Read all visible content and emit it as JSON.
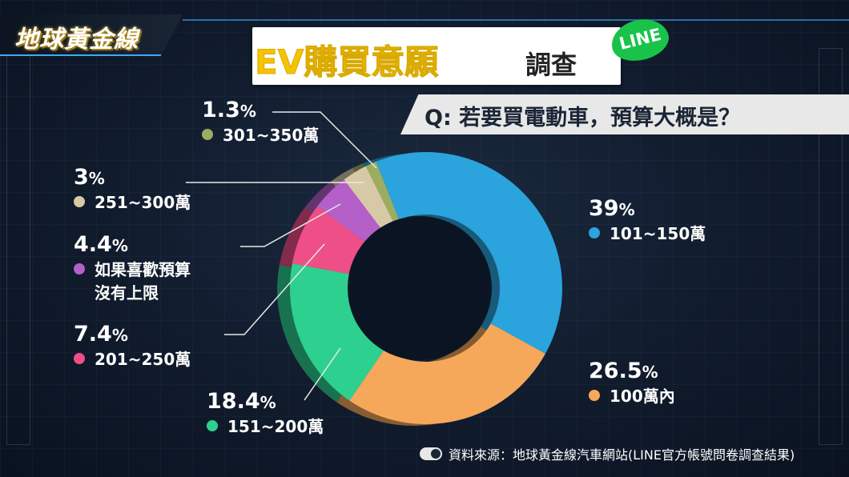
{
  "brand": "地球黃金線",
  "title": {
    "main": "EV購買意願",
    "sub": "調查",
    "badge": "LINE"
  },
  "question": "Q: 若要買電動車，預算大概是？",
  "source": "資料來源：地球黃金線汽車網站(LINE官方帳號問卷調查結果)",
  "chart_data": {
    "type": "pie",
    "subtype": "donut",
    "title": "EV購買意願調查",
    "subtitle": "Q: 若要買電動車，預算大概是？",
    "slices": [
      {
        "label": "101~150萬",
        "value": 39,
        "display": "39%",
        "color": "#2ba3dd"
      },
      {
        "label": "100萬內",
        "value": 26.5,
        "display": "26.5%",
        "color": "#f6a85a"
      },
      {
        "label": "151~200萬",
        "value": 18.4,
        "display": "18.4%",
        "color": "#2ed08f"
      },
      {
        "label": "201~250萬",
        "value": 7.4,
        "display": "7.4%",
        "color": "#ee4f86"
      },
      {
        "label": "如果喜歡預算沒有上限",
        "value": 4.4,
        "display": "4.4%",
        "color": "#b55fc9"
      },
      {
        "label": "251~300萬",
        "value": 3,
        "display": "3%",
        "color": "#d8c9a6"
      },
      {
        "label": "301~350萬",
        "value": 1.3,
        "display": "1.3%",
        "color": "#9cad60"
      }
    ],
    "legend_placement": "around"
  },
  "labels": {
    "s0": {
      "pct": "39",
      "cat": "101~150萬"
    },
    "s1": {
      "pct": "26.5",
      "cat": "100萬內"
    },
    "s2": {
      "pct": "18.4",
      "cat": "151~200萬"
    },
    "s3": {
      "pct": "7.4",
      "cat": "201~250萬"
    },
    "s4": {
      "pct": "4.4",
      "cat1": "如果喜歡預算",
      "cat2": "沒有上限"
    },
    "s5": {
      "pct": "3",
      "cat": "251~300萬"
    },
    "s6": {
      "pct": "1.3",
      "cat": "301~350萬"
    }
  }
}
